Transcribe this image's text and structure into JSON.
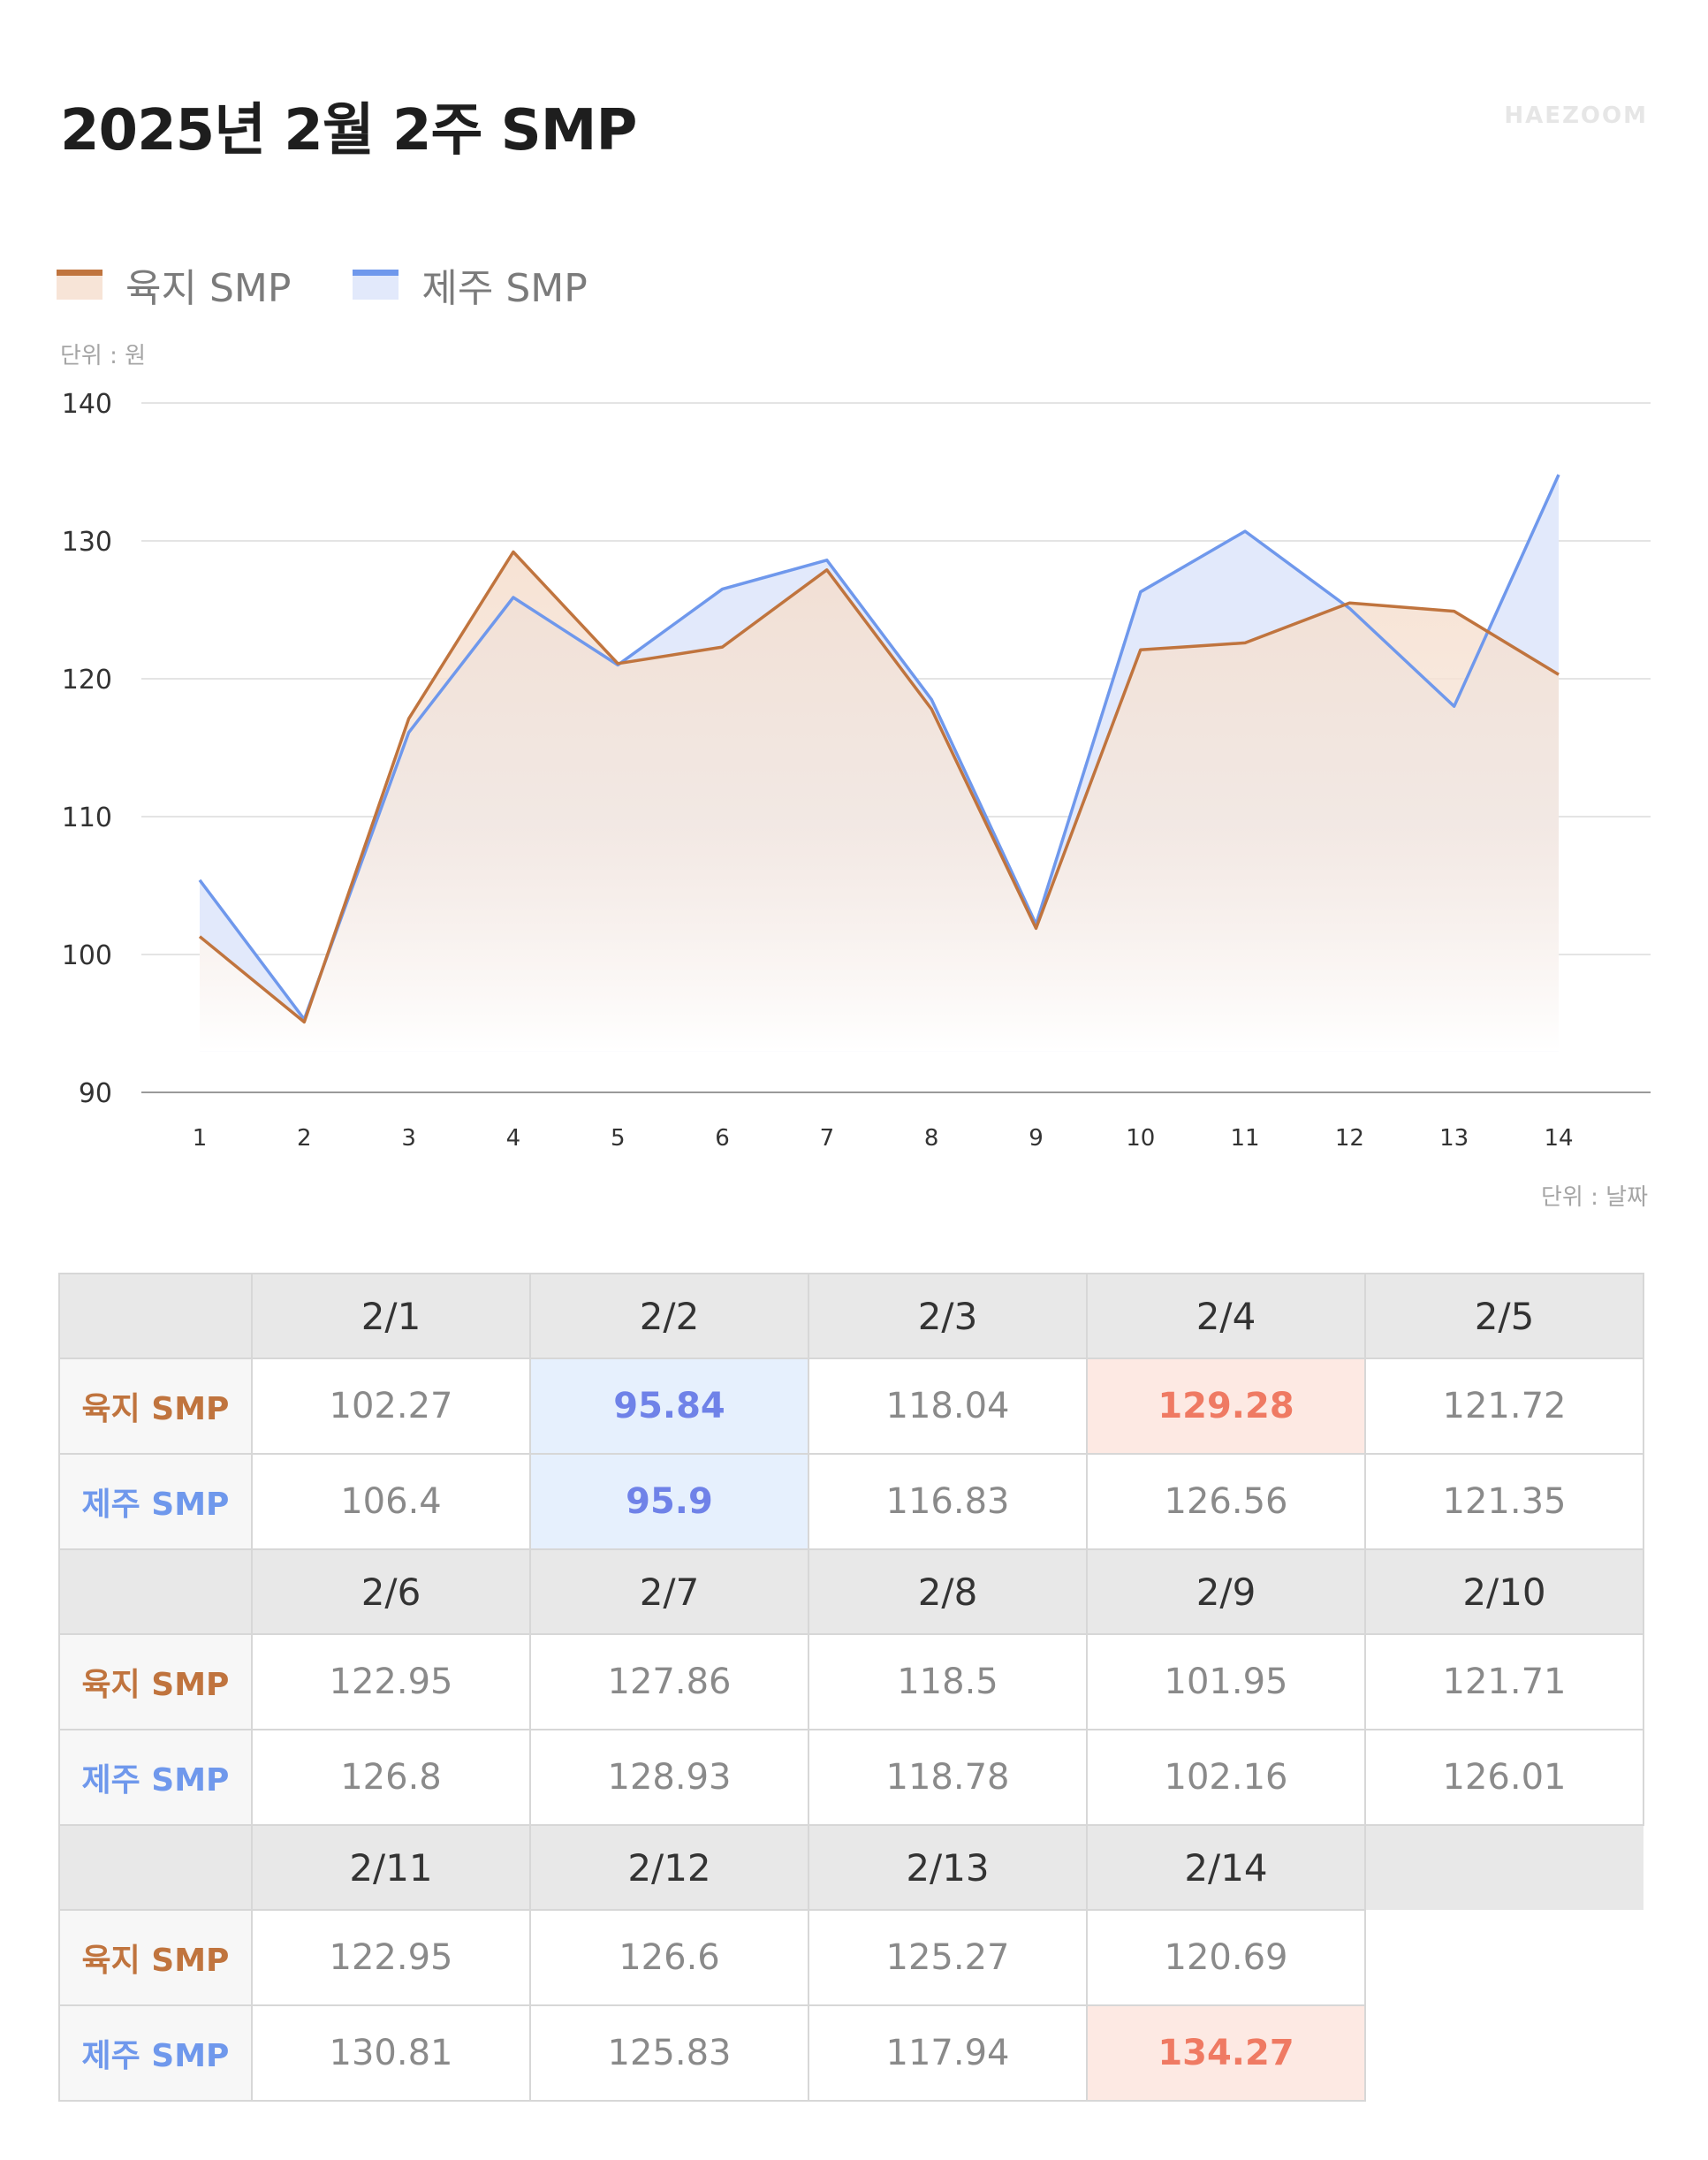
{
  "title": "2025년 2월 2주 SMP",
  "brand": "HAEZOOM",
  "legend": {
    "land": "육지 SMP",
    "jeju": "제주 SMP"
  },
  "unit_y": "단위 : 원",
  "unit_x": "단위 : 날짜",
  "colors": {
    "land": "#c0743e",
    "jeju": "#6f98ec",
    "min_text": "#6f82e8",
    "max_text": "#ef7a63"
  },
  "chart_data": {
    "type": "area",
    "x": [
      1,
      2,
      3,
      4,
      5,
      6,
      7,
      8,
      9,
      10,
      11,
      12,
      13,
      14
    ],
    "series": [
      {
        "name": "육지 SMP",
        "values": [
          101.3,
          95.1,
          117.1,
          129.2,
          121.1,
          122.3,
          127.9,
          117.8,
          101.9,
          122.1,
          122.6,
          125.5,
          124.9,
          120.3
        ]
      },
      {
        "name": "제주 SMP",
        "values": [
          105.4,
          95.3,
          116.1,
          125.9,
          121.0,
          126.5,
          128.6,
          118.5,
          102.2,
          126.3,
          130.7,
          125.1,
          118.0,
          134.8
        ]
      }
    ],
    "xlabel": "단위 : 날짜",
    "ylabel": "단위 : 원",
    "ylim": [
      90,
      140
    ],
    "yticks": [
      "140",
      "130",
      "120",
      "110",
      "100",
      "90"
    ],
    "xticks": [
      "1",
      "2",
      "3",
      "4",
      "5",
      "6",
      "7",
      "8",
      "9",
      "10",
      "11",
      "12",
      "13",
      "14"
    ],
    "grid": true,
    "legend_position": "top-left"
  },
  "table": {
    "row_labels": {
      "land": "육지 SMP",
      "jeju": "제주 SMP"
    },
    "blocks": [
      {
        "dates": [
          "2/1",
          "2/2",
          "2/3",
          "2/4",
          "2/5"
        ],
        "land": [
          "102.27",
          "95.84",
          "118.04",
          "129.28",
          "121.72"
        ],
        "jeju": [
          "106.4",
          "95.9",
          "116.83",
          "126.56",
          "121.35"
        ]
      },
      {
        "dates": [
          "2/6",
          "2/7",
          "2/8",
          "2/9",
          "2/10"
        ],
        "land": [
          "122.95",
          "127.86",
          "118.5",
          "101.95",
          "121.71"
        ],
        "jeju": [
          "126.8",
          "128.93",
          "118.78",
          "102.16",
          "126.01"
        ]
      },
      {
        "dates": [
          "2/11",
          "2/12",
          "2/13",
          "2/14"
        ],
        "land": [
          "122.95",
          "126.6",
          "125.27",
          "120.69"
        ],
        "jeju": [
          "130.81",
          "125.83",
          "117.94",
          "134.27"
        ]
      }
    ]
  }
}
